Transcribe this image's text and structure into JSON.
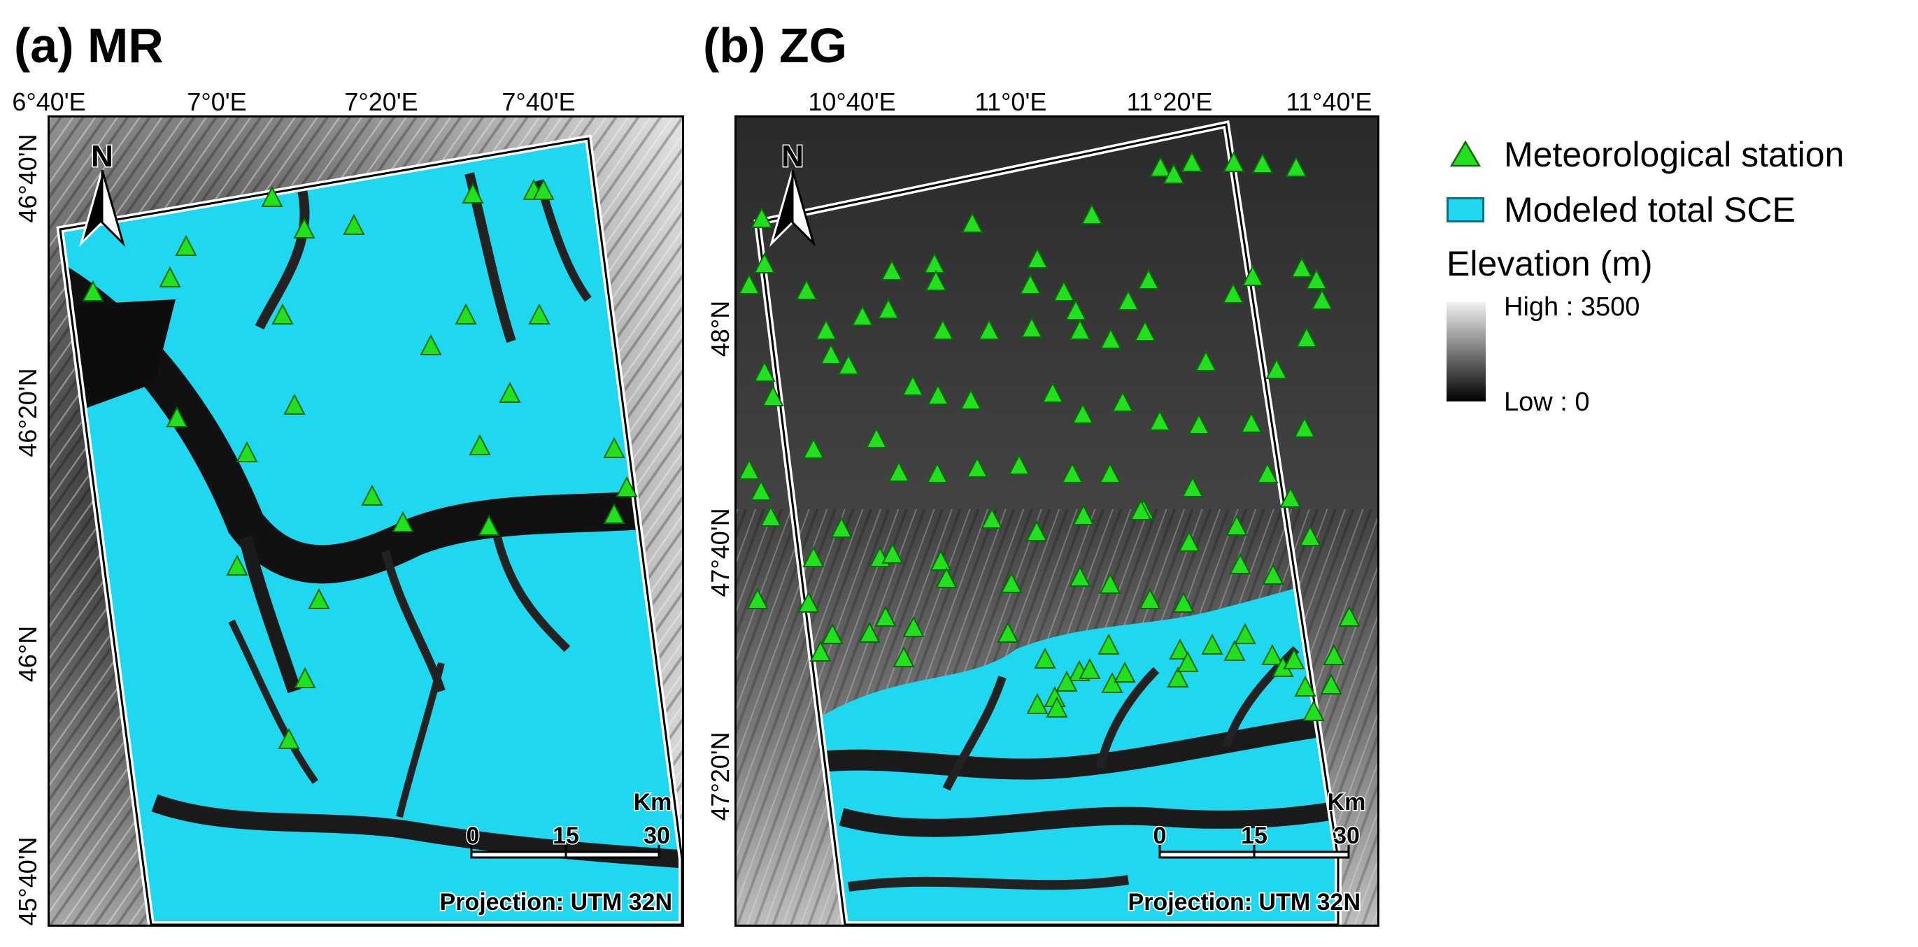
{
  "panels": [
    {
      "id": "mr",
      "title": "(a) MR",
      "lon_ticks": [
        "6°40'E",
        "7°0'E",
        "7°20'E",
        "7°40'E"
      ],
      "lat_ticks": [
        "46°40'N",
        "46°20'N",
        "46°N",
        "45°40'N"
      ],
      "north_arrow_label": "N",
      "scale_unit": "Km",
      "scale_ticks": [
        "0",
        "15",
        "30"
      ],
      "projection": "Projection: UTM 32N"
    },
    {
      "id": "zg",
      "title": "(b) ZG",
      "lon_ticks": [
        "10°40'E",
        "11°0'E",
        "11°20'E",
        "11°40'E"
      ],
      "lat_ticks": [
        "48°N",
        "47°40'N",
        "47°20'N"
      ],
      "north_arrow_label": "N",
      "scale_unit": "Km",
      "scale_ticks": [
        "0",
        "15",
        "30"
      ],
      "projection": "Projection: UTM 32N"
    }
  ],
  "legend": {
    "station_label": "Meteorological station",
    "sce_label": "Modeled total SCE",
    "elevation_title": "Elevation (m)",
    "high_label": "High : 3500",
    "low_label": "Low : 0"
  },
  "colors": {
    "snow": "#1fd8f0",
    "station_fill": "#22e01e",
    "station_stroke": "#0a6a0a",
    "terrain_high": "#f2f2f2",
    "terrain_low": "#000000"
  },
  "icons": {
    "station": "green-triangle-icon",
    "north": "north-arrow-icon"
  }
}
